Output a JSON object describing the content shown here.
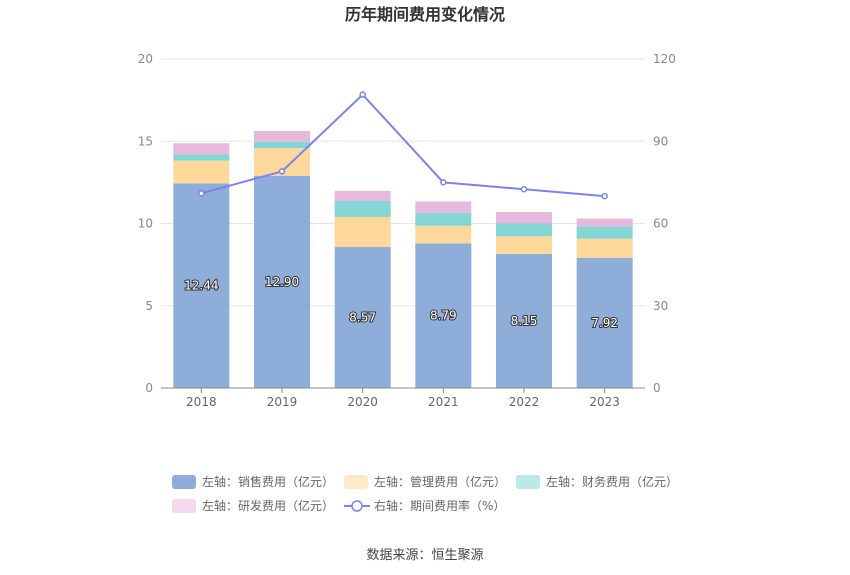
{
  "chart_data": {
    "type": "bar",
    "title": "历年期间费用变化情况",
    "categories": [
      "2018",
      "2019",
      "2020",
      "2021",
      "2022",
      "2023"
    ],
    "left_axis": {
      "ylim": [
        0,
        20
      ],
      "ticks": [
        "0",
        "5",
        "10",
        "15",
        "20"
      ]
    },
    "right_axis": {
      "ylim": [
        0,
        120
      ],
      "ticks": [
        "0",
        "30",
        "60",
        "90",
        "120"
      ]
    },
    "series": [
      {
        "name": "左轴：销售费用（亿元）",
        "type": "bar",
        "axis": "left",
        "color": "#8eadd9",
        "values": [
          12.44,
          12.9,
          8.57,
          8.79,
          8.15,
          7.92
        ],
        "labels": [
          "12.44",
          "12.90",
          "8.57",
          "8.79",
          "8.15",
          "7.92"
        ]
      },
      {
        "name": "左轴：管理费用（亿元）",
        "type": "bar",
        "axis": "left",
        "color": "#fed89a",
        "values": [
          1.38,
          1.68,
          1.83,
          1.07,
          1.07,
          1.15
        ]
      },
      {
        "name": "左轴：财务费用（亿元）",
        "type": "bar",
        "axis": "left",
        "color": "#85d5d5",
        "values": [
          0.38,
          0.38,
          0.97,
          0.79,
          0.78,
          0.76
        ]
      },
      {
        "name": "左轴：研发费用（亿元）",
        "type": "bar",
        "axis": "left",
        "color": "#e7b9dd",
        "values": [
          0.68,
          0.66,
          0.61,
          0.69,
          0.7,
          0.47
        ]
      },
      {
        "name": "右轴：期间费用率（%）",
        "type": "line",
        "axis": "right",
        "color": "#7b83ee",
        "values": [
          71,
          79,
          107,
          75,
          72.5,
          70
        ]
      }
    ],
    "grid": true,
    "legend": "bottom"
  },
  "source_text": "数据来源：恒生聚源"
}
